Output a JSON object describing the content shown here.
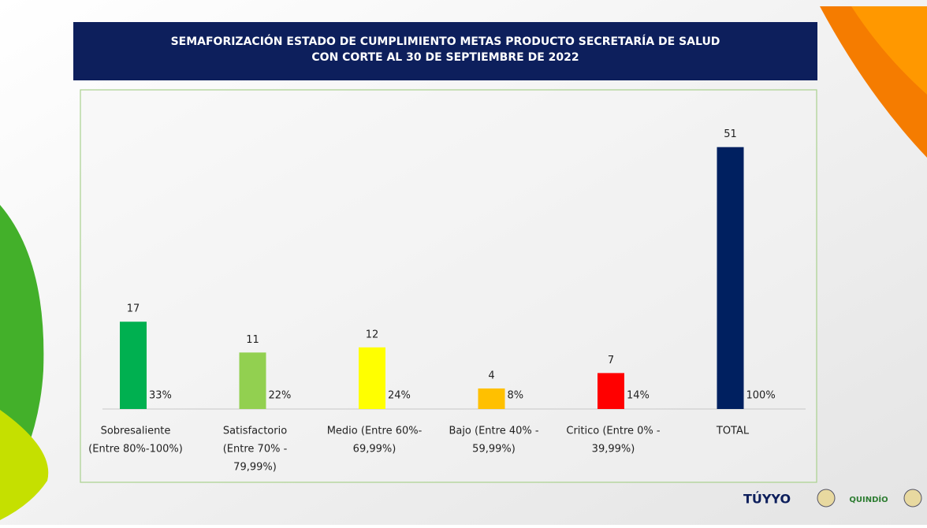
{
  "chart_data": {
    "type": "bar",
    "title": [
      "SEMAFORIZACIÓN  ESTADO DE CUMPLIMIENTO METAS PRODUCTO SECRETARÍA DE  SALUD",
      "CON CORTE AL  30 DE SEPTIEMBRE DE 2022"
    ],
    "categories": [
      [
        "Sobresaliente",
        "(Entre 80%-100%)"
      ],
      [
        "Satisfactorio",
        "(Entre 70% -",
        "79,99%)"
      ],
      [
        "Medio (Entre 60%-",
        "69,99%)"
      ],
      [
        "Bajo (Entre 40% -",
        "59,99%)"
      ],
      [
        "Critico (Entre 0% -",
        "39,99%)"
      ],
      [
        "TOTAL"
      ]
    ],
    "values": [
      17,
      11,
      12,
      4,
      7,
      51
    ],
    "percents": [
      33,
      22,
      24,
      8,
      14,
      100
    ],
    "percent_labels": [
      "33%",
      "22%",
      "24%",
      "8%",
      "14%",
      "100%"
    ],
    "colors": [
      "#00b050",
      "#92d050",
      "#ffff00",
      "#ffc000",
      "#ff0000",
      "#002060"
    ],
    "ylim": [
      0,
      62
    ]
  },
  "footer": {
    "logos": [
      "TÚYYO",
      "QUINDÍO"
    ]
  }
}
